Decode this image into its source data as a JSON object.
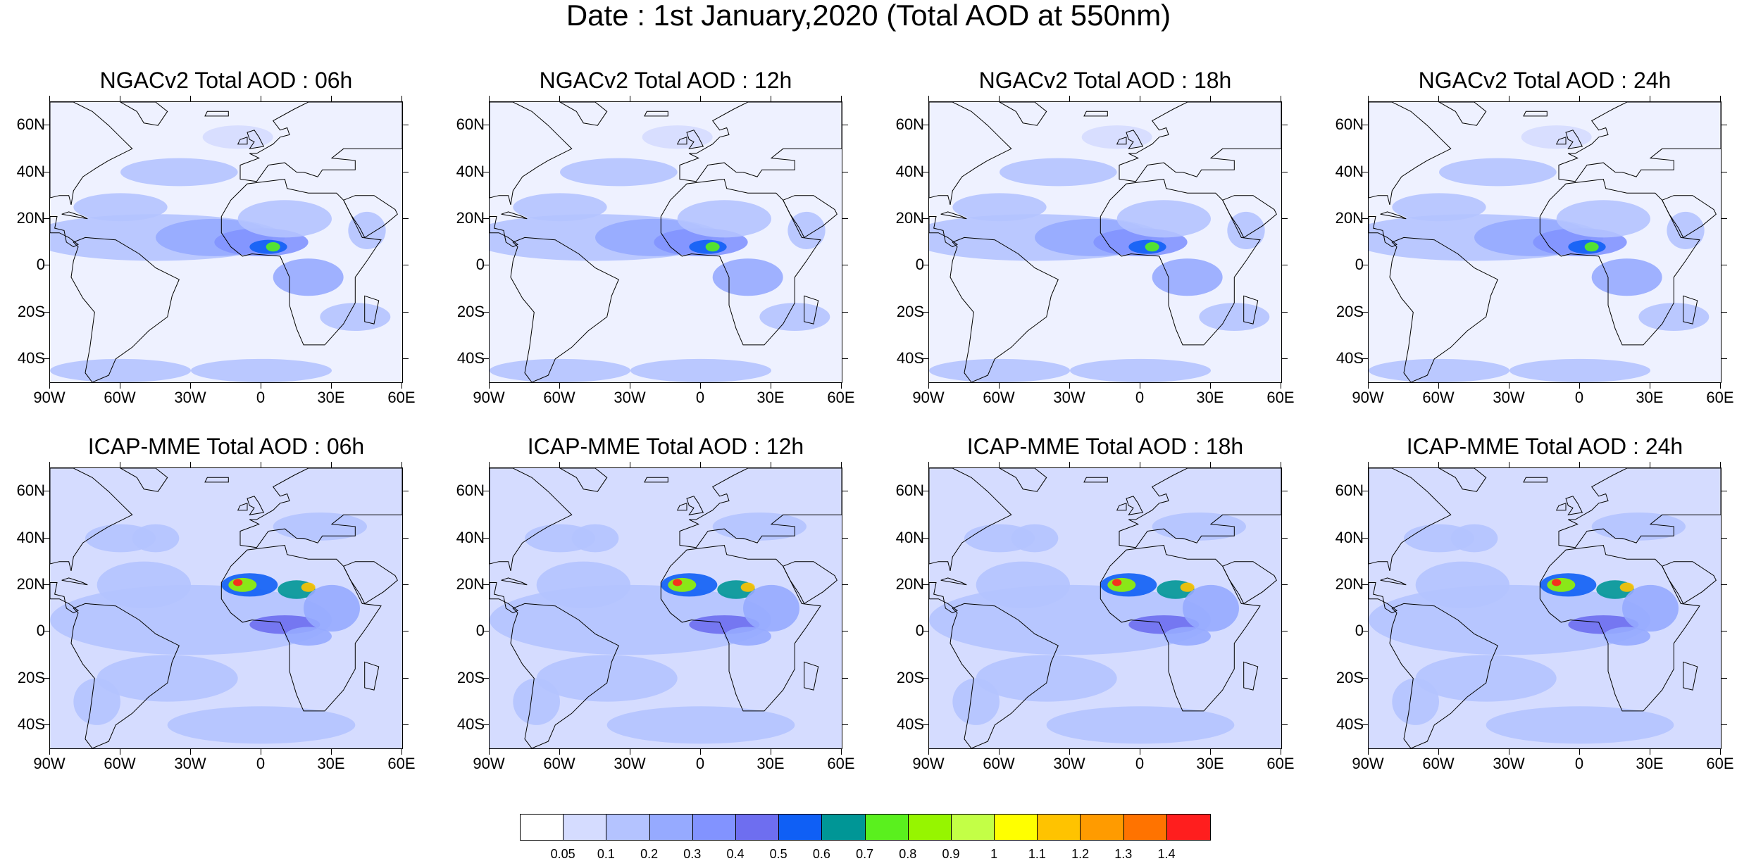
{
  "title": "Date : 1st January,2020 (Total AOD at 550nm)",
  "lat_ticks": [
    "60N",
    "40N",
    "20N",
    "0",
    "20S",
    "40S"
  ],
  "lon_ticks": [
    "90W",
    "60W",
    "30W",
    "0",
    "30E",
    "60E"
  ],
  "panels": [
    {
      "title": "NGACv2 Total AOD : 06h",
      "model": "NGACv2",
      "hour": "06h"
    },
    {
      "title": "NGACv2 Total AOD : 12h",
      "model": "NGACv2",
      "hour": "12h"
    },
    {
      "title": "NGACv2 Total AOD : 18h",
      "model": "NGACv2",
      "hour": "18h"
    },
    {
      "title": "NGACv2 Total AOD : 24h",
      "model": "NGACv2",
      "hour": "24h"
    },
    {
      "title": "ICAP-MME Total AOD : 06h",
      "model": "ICAP-MME",
      "hour": "06h"
    },
    {
      "title": "ICAP-MME Total AOD : 12h",
      "model": "ICAP-MME",
      "hour": "12h"
    },
    {
      "title": "ICAP-MME Total AOD : 18h",
      "model": "ICAP-MME",
      "hour": "18h"
    },
    {
      "title": "ICAP-MME Total AOD : 24h",
      "model": "ICAP-MME",
      "hour": "24h"
    }
  ],
  "map_extent": {
    "lon": [
      -90,
      60
    ],
    "lat": [
      -50,
      70
    ]
  },
  "colorbar": {
    "labels": [
      "0.05",
      "0.1",
      "0.2",
      "0.3",
      "0.4",
      "0.5",
      "0.6",
      "0.7",
      "0.8",
      "0.9",
      "1",
      "1.1",
      "1.2",
      "1.3",
      "1.4"
    ],
    "colors": [
      "#ffffff",
      "#d5dcff",
      "#b4c3ff",
      "#96aaff",
      "#8293ff",
      "#6e6ef0",
      "#0f5ff5",
      "#009696",
      "#5af01e",
      "#96f500",
      "#c3ff46",
      "#ffff00",
      "#ffc300",
      "#ff9b00",
      "#ff7300",
      "#ff1e1e"
    ]
  }
}
